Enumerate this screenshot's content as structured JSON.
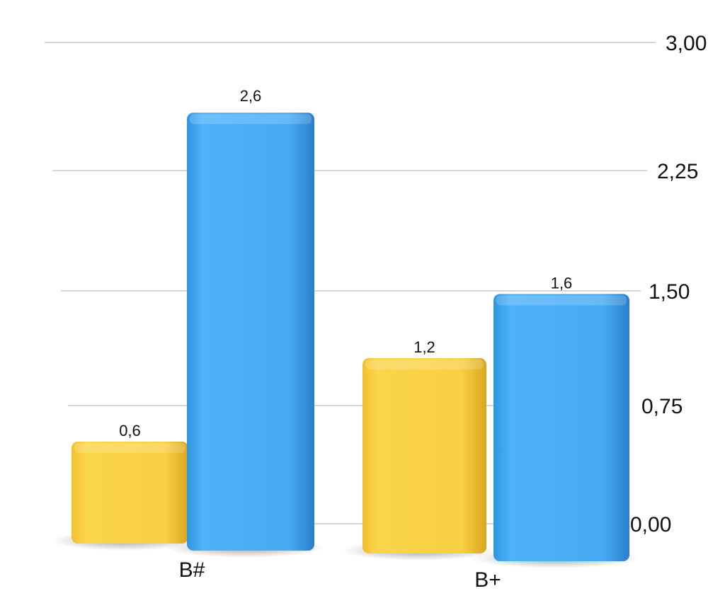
{
  "chart_data": {
    "type": "bar",
    "categories": [
      "B#",
      "B+"
    ],
    "series": [
      {
        "values": [
          0.6,
          1.2
        ],
        "color": "#F7C93A",
        "labels": [
          "0,6",
          "1,2"
        ]
      },
      {
        "values": [
          2.6,
          1.6
        ],
        "color": "#41A8F0",
        "labels": [
          "2,6",
          "1,6"
        ]
      }
    ],
    "ylim": [
      0,
      3
    ],
    "yticks": [
      0,
      0.75,
      1.5,
      2.25,
      3.0
    ],
    "ytick_labels": [
      "0,00",
      "0,75",
      "1,50",
      "2,25",
      "3,00"
    ],
    "y_axis_position": "right",
    "grid": true,
    "style": "3d-perspective"
  }
}
